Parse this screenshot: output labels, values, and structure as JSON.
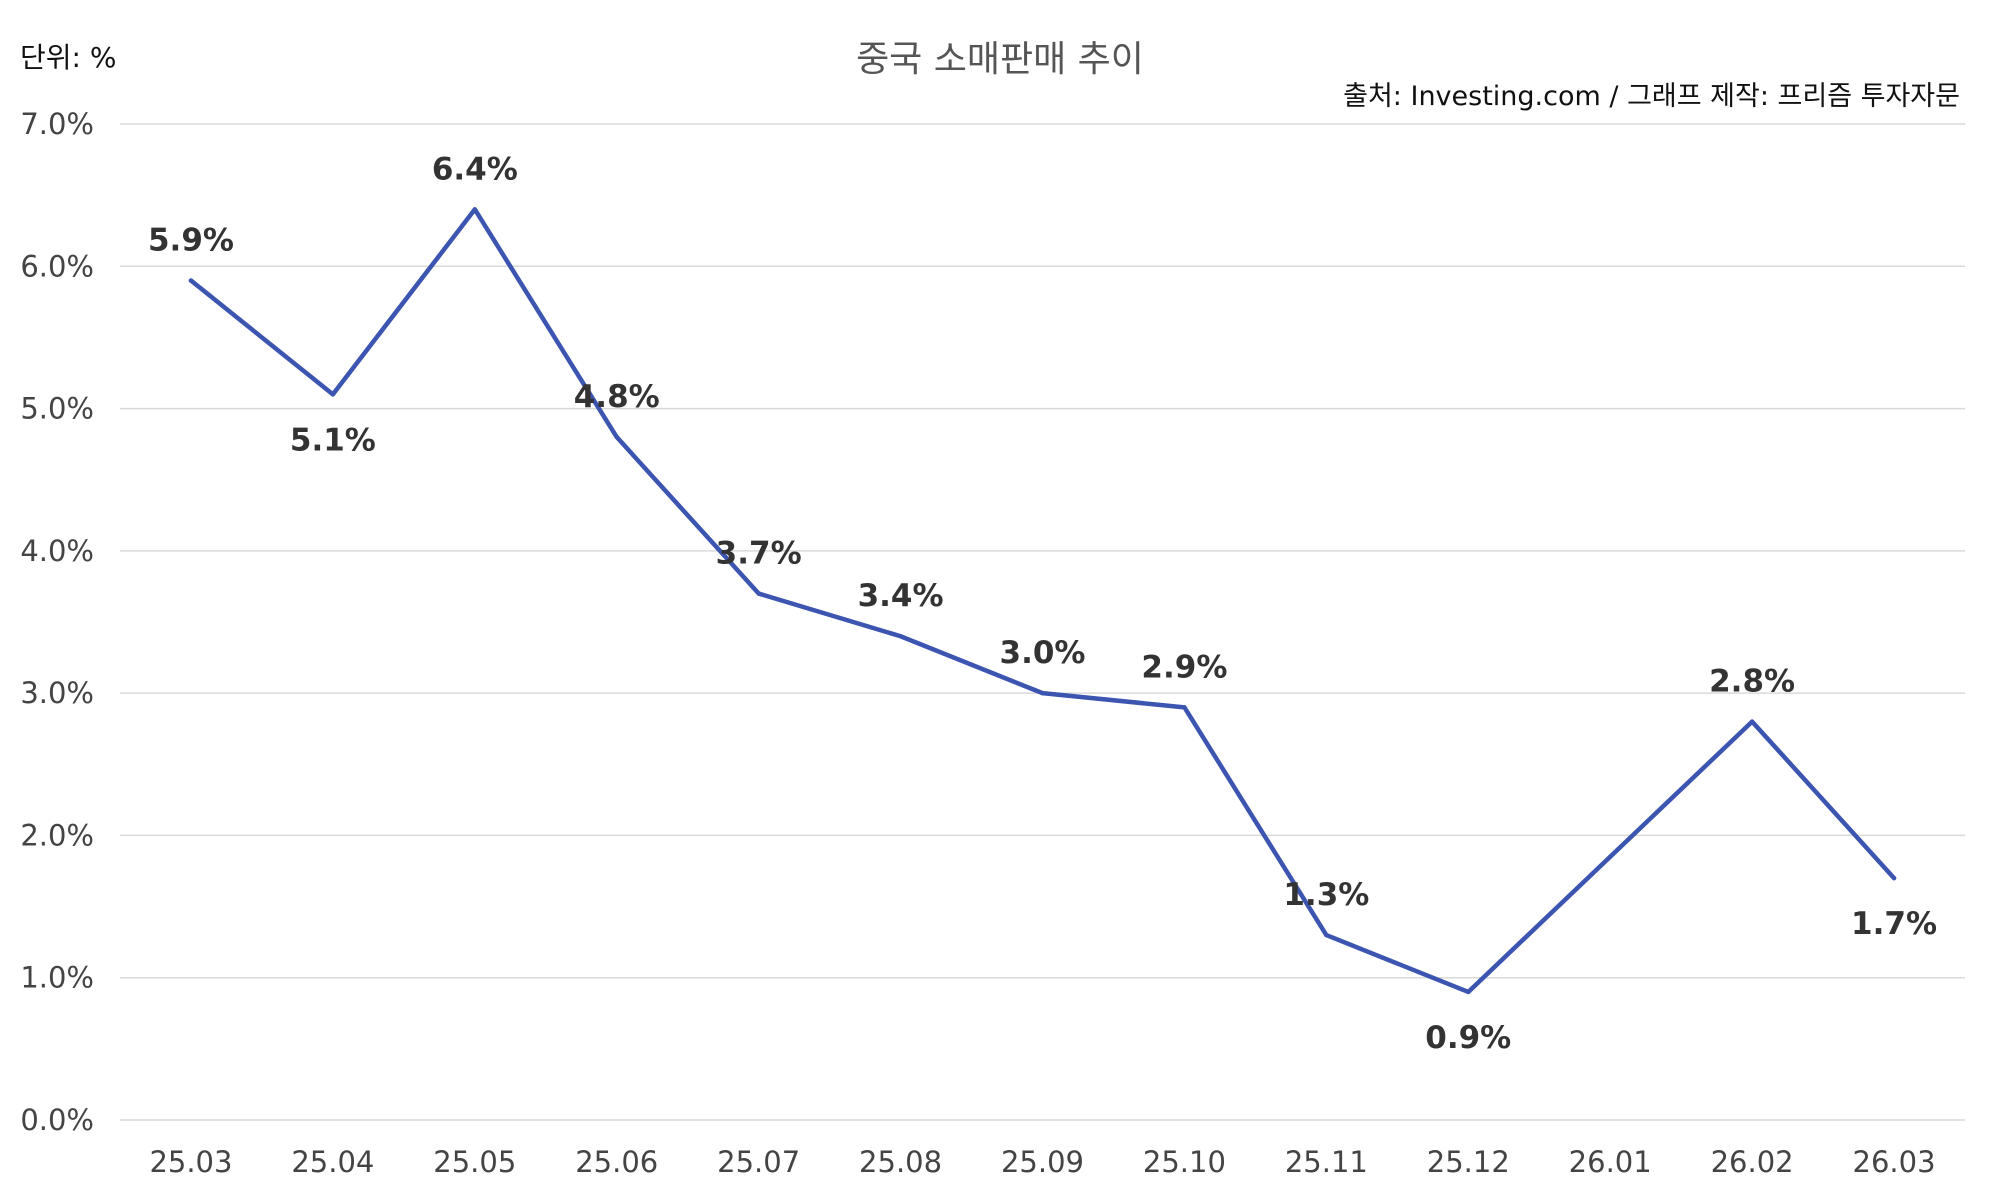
{
  "header": {
    "unit": "단위: %",
    "source": "출처: Investing.com / 그래프 제작: 프리즘 투자자문"
  },
  "chart_data": {
    "type": "line",
    "title": "중국 소매판매 추이",
    "categories": [
      "25.03",
      "25.04",
      "25.05",
      "25.06",
      "25.07",
      "25.08",
      "25.09",
      "25.10",
      "25.11",
      "25.12",
      "26.01",
      "26.02",
      "26.03"
    ],
    "series": [
      {
        "values": [
          5.9,
          5.1,
          6.4,
          4.8,
          3.7,
          3.4,
          3.0,
          2.9,
          1.3,
          0.9,
          1.85,
          2.8,
          1.7
        ],
        "labels": [
          "5.9%",
          "5.1%",
          "6.4%",
          "4.8%",
          "3.7%",
          "3.4%",
          "3.0%",
          "2.9%",
          "1.3%",
          "0.9%",
          "",
          "2.8%",
          "1.7%"
        ],
        "color": "#3b55b0"
      }
    ],
    "ylim": [
      0,
      7
    ],
    "yticks": [
      0,
      1,
      2,
      3,
      4,
      5,
      6,
      7
    ],
    "ytick_labels": [
      "0.0%",
      "1.0%",
      "2.0%",
      "3.0%",
      "4.0%",
      "5.0%",
      "6.0%",
      "7.0%"
    ],
    "grid": true,
    "legend": false
  }
}
